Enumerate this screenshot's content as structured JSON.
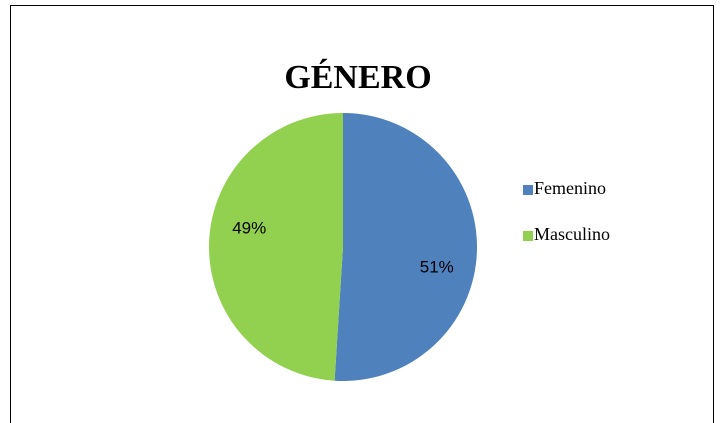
{
  "chart_data": {
    "type": "pie",
    "title": "GÉNERO",
    "categories": [
      "Femenino",
      "Masculino"
    ],
    "values": [
      51,
      49
    ],
    "value_labels": [
      "51%",
      "49%"
    ],
    "colors": [
      "#4f81bd",
      "#92d050"
    ],
    "legend": "right"
  }
}
